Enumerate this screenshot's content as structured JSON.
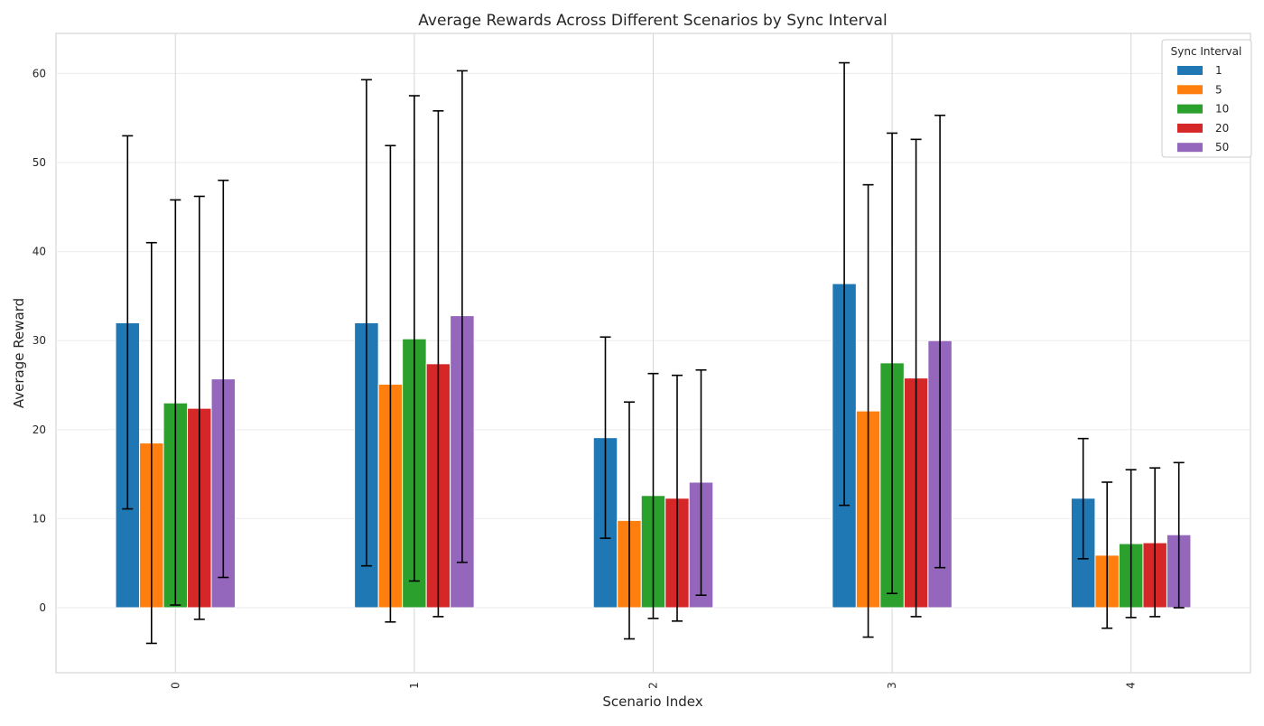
{
  "chart_data": {
    "type": "bar",
    "title": "Average Rewards Across Different Scenarios by Sync Interval",
    "xlabel": "Scenario Index",
    "ylabel": "Average Reward",
    "categories": [
      "0",
      "1",
      "2",
      "3",
      "4"
    ],
    "ylim": [
      -7.3,
      64.5
    ],
    "yticks": [
      0,
      10,
      20,
      30,
      40,
      50,
      60
    ],
    "ytick_labels": [
      "0",
      "10",
      "20",
      "30",
      "40",
      "50",
      "60"
    ],
    "grid": true,
    "legend": {
      "title": "Sync Interval",
      "placement": "top-right"
    },
    "series": [
      {
        "name": "1",
        "color": "#1f77b4",
        "values": [
          32.0,
          32.0,
          19.1,
          36.4,
          12.3
        ],
        "error_low": [
          11.1,
          4.7,
          7.8,
          11.5,
          5.5
        ],
        "error_high": [
          53.0,
          59.3,
          30.4,
          61.2,
          19.0
        ]
      },
      {
        "name": "5",
        "color": "#ff7f0e",
        "values": [
          18.5,
          25.1,
          9.8,
          22.1,
          5.9
        ],
        "error_low": [
          -4.0,
          -1.6,
          -3.5,
          -3.3,
          -2.3
        ],
        "error_high": [
          41.0,
          51.9,
          23.1,
          47.5,
          14.1
        ]
      },
      {
        "name": "10",
        "color": "#2ca02c",
        "values": [
          23.0,
          30.2,
          12.6,
          27.5,
          7.2
        ],
        "error_low": [
          0.3,
          3.0,
          -1.2,
          1.6,
          -1.1
        ],
        "error_high": [
          45.8,
          57.5,
          26.3,
          53.3,
          15.5
        ]
      },
      {
        "name": "20",
        "color": "#d62728",
        "values": [
          22.4,
          27.4,
          12.3,
          25.8,
          7.3
        ],
        "error_low": [
          -1.3,
          -1.0,
          -1.5,
          -1.0,
          -1.0
        ],
        "error_high": [
          46.2,
          55.8,
          26.1,
          52.6,
          15.7
        ]
      },
      {
        "name": "50",
        "color": "#9467bd",
        "values": [
          25.7,
          32.8,
          14.1,
          30.0,
          8.2
        ],
        "error_low": [
          3.4,
          5.1,
          1.4,
          4.5,
          0.0
        ],
        "error_high": [
          48.0,
          60.3,
          26.7,
          55.3,
          16.3
        ]
      }
    ]
  }
}
